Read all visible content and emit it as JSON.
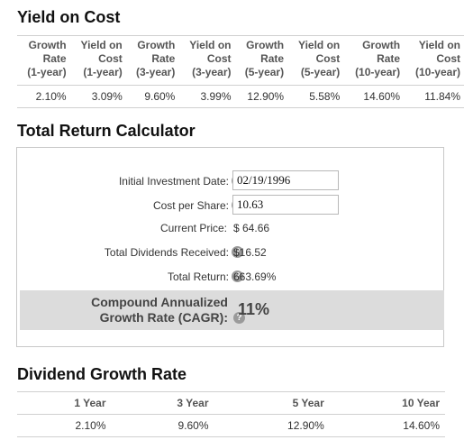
{
  "yield_on_cost": {
    "title": "Yield on Cost",
    "headers": [
      [
        "Growth",
        "Rate",
        "(1-year)"
      ],
      [
        "Yield on",
        "Cost",
        "(1-year)"
      ],
      [
        "Growth",
        "Rate",
        "(3-year)"
      ],
      [
        "Yield on",
        "Cost",
        "(3-year)"
      ],
      [
        "Growth",
        "Rate",
        "(5-year)"
      ],
      [
        "Yield on",
        "Cost",
        "(5-year)"
      ],
      [
        "Growth",
        "Rate",
        "(10-year)"
      ],
      [
        "Yield on",
        "Cost",
        "(10-year)"
      ]
    ],
    "values": [
      "2.10%",
      "3.09%",
      "9.60%",
      "3.99%",
      "12.90%",
      "5.58%",
      "14.60%",
      "11.84%"
    ]
  },
  "calculator": {
    "title": "Total Return Calculator",
    "help_glyph": "?",
    "initial_investment_label": "Initial Investment Date:",
    "initial_investment_value": "02/19/1996",
    "cost_per_share_label": "Cost per Share:",
    "cost_per_share_value": "10.63",
    "current_price_label": "Current Price:",
    "current_price_value": "$ 64.66",
    "total_dividends_label": "Total Dividends Received:",
    "total_dividends_value": "$16.52",
    "total_return_label": "Total Return:",
    "total_return_value": "663.69%",
    "cagr_label_line1": "Compound Annualized",
    "cagr_label_line2": "Growth Rate (CAGR):",
    "cagr_value": "11%"
  },
  "dividend_growth": {
    "title": "Dividend Growth Rate",
    "headers": [
      "1 Year",
      "3 Year",
      "5 Year",
      "10 Year"
    ],
    "values": [
      "2.10%",
      "9.60%",
      "12.90%",
      "14.60%"
    ]
  }
}
